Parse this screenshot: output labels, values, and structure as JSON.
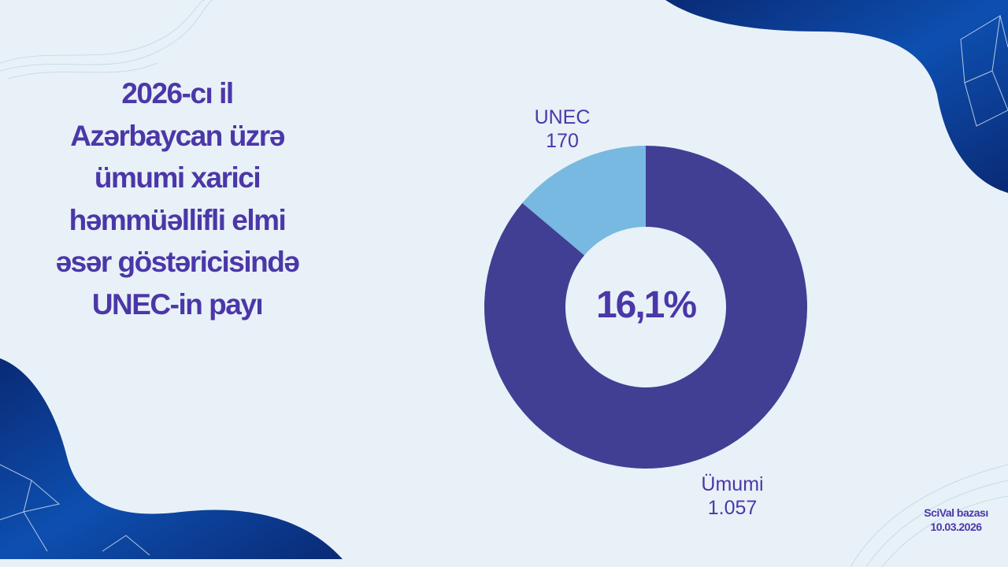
{
  "title_lines": [
    "2026-cı il",
    "Azərbaycan üzrə",
    "ümumi xarici",
    "həmmüəllifli elmi",
    "əsər göstəricisində",
    "UNEC-in payı"
  ],
  "chart_data": {
    "type": "donut",
    "title": "",
    "center_label": "16,1%",
    "slices": [
      {
        "name": "UNEC",
        "value": 170,
        "value_label": "170",
        "color": "#77b9e0"
      },
      {
        "name": "Ümumi",
        "value": 1057,
        "value_label": "1.057",
        "color": "#403f93"
      }
    ],
    "start": "top",
    "direction": "counter-clockwise for UNEC"
  },
  "source": {
    "line1": "SciVal bazası",
    "line2": "10.03.2026"
  },
  "colors": {
    "background": "#e8f1f7",
    "text": "#4b37a8",
    "decor_blue": "#0b3a8c"
  }
}
